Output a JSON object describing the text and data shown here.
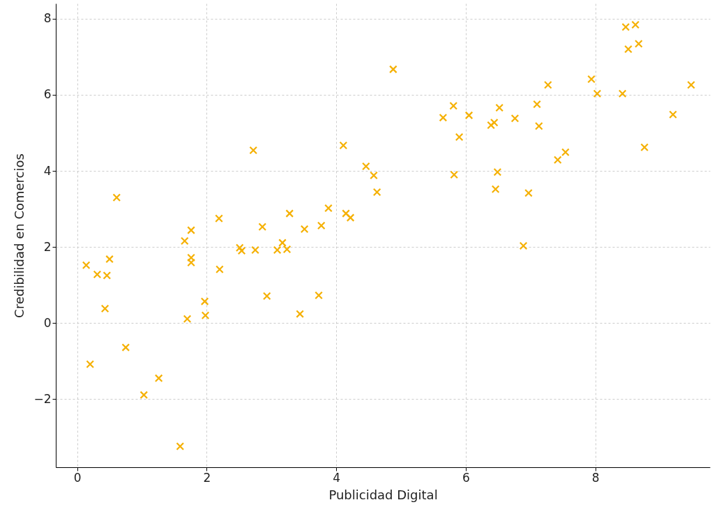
{
  "chart_data": {
    "type": "scatter",
    "xlabel": "Publicidad Digital",
    "ylabel": "Credibilidad en Comercios",
    "x": [
      0.14,
      0.2,
      0.31,
      0.43,
      0.46,
      0.5,
      0.61,
      0.75,
      1.03,
      1.26,
      1.59,
      1.66,
      1.7,
      1.76,
      1.76,
      1.76,
      1.97,
      1.98,
      2.19,
      2.2,
      2.51,
      2.54,
      2.72,
      2.75,
      2.86,
      2.93,
      3.09,
      3.17,
      3.24,
      3.28,
      3.44,
      3.51,
      3.73,
      3.77,
      3.88,
      4.11,
      4.15,
      4.22,
      4.46,
      4.58,
      4.63,
      4.88,
      5.65,
      5.81,
      5.82,
      5.9,
      6.05,
      6.39,
      6.44,
      6.46,
      6.49,
      6.52,
      6.76,
      6.89,
      6.97,
      7.1,
      7.13,
      7.27,
      7.42,
      7.54,
      7.94,
      8.03,
      8.42,
      8.47,
      8.51,
      8.62,
      8.67,
      8.76,
      9.2,
      9.48
    ],
    "series": [
      {
        "color": "#f5b000",
        "values": [
          1.52,
          -1.08,
          1.28,
          0.38,
          1.25,
          1.68,
          3.3,
          -0.64,
          -1.89,
          -1.45,
          -3.24,
          2.16,
          0.11,
          2.44,
          1.72,
          1.59,
          0.57,
          0.2,
          2.75,
          1.41,
          1.98,
          1.9,
          4.54,
          1.92,
          2.53,
          0.71,
          1.92,
          2.11,
          1.94,
          2.88,
          0.24,
          2.47,
          0.73,
          2.56,
          3.02,
          4.67,
          2.88,
          2.77,
          4.12,
          3.88,
          3.44,
          6.67,
          5.4,
          5.71,
          3.9,
          4.89,
          5.46,
          5.2,
          5.27,
          3.52,
          3.97,
          5.66,
          5.38,
          2.03,
          3.42,
          5.75,
          5.18,
          6.26,
          4.29,
          4.49,
          6.41,
          6.03,
          6.03,
          7.78,
          7.2,
          7.84,
          7.34,
          4.62,
          5.48,
          6.26
        ]
      }
    ],
    "xlim": [
      -0.33,
      9.77
    ],
    "ylim": [
      -3.79,
      8.4
    ],
    "xticks": [
      0,
      2,
      4,
      6,
      8
    ],
    "yticks": [
      -2,
      0,
      2,
      4,
      6,
      8
    ],
    "grid": true,
    "marker": "cross"
  }
}
